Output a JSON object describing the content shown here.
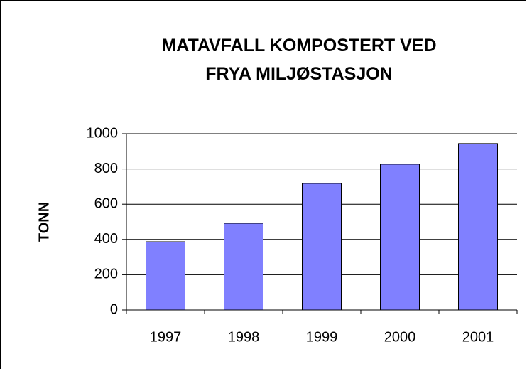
{
  "chart_data": {
    "type": "bar",
    "title": "MATAVFALL KOMPOSTERT VED FRYA MILJØSTASJON",
    "y_label": "TONN",
    "categories": [
      "1997",
      "1998",
      "1999",
      "2000",
      "2001"
    ],
    "values": [
      387,
      492,
      718,
      827,
      944
    ],
    "color": "#8080ff",
    "ylim": [
      0,
      1000
    ],
    "yticks": [
      0,
      200,
      400,
      600,
      800,
      1000
    ],
    "grid": true
  }
}
